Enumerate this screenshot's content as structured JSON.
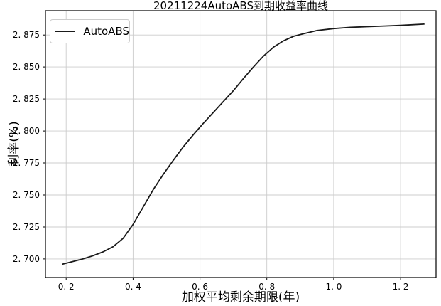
{
  "chart_data": {
    "type": "line",
    "title": "20211224AutoABS到期收益率曲线",
    "xlabel": "加权平均剩余期限(年)",
    "ylabel": "利率(%)",
    "grid": true,
    "legend_position": "upper-left",
    "legend": [
      {
        "name": "AutoABS",
        "color": "#1a1a1a"
      }
    ],
    "xlim": [
      0.138,
      1.306
    ],
    "ylim": [
      2.6855,
      2.894
    ],
    "xticks": {
      "values": [
        0.2,
        0.4,
        0.6,
        0.8,
        1.0,
        1.2
      ],
      "labels": [
        "0. 2",
        "0. 4",
        "0. 6",
        "0. 8",
        "1. 0",
        "1. 2"
      ]
    },
    "yticks": {
      "values": [
        2.7,
        2.725,
        2.75,
        2.775,
        2.8,
        2.825,
        2.85,
        2.875
      ],
      "labels": [
        "2. 700",
        "2. 725",
        "2. 750",
        "2. 775",
        "2. 800",
        "2. 825",
        "2. 850",
        "2. 875"
      ]
    },
    "series": [
      {
        "name": "AutoABS",
        "color": "#1a1a1a",
        "x": [
          0.19,
          0.22,
          0.25,
          0.28,
          0.31,
          0.34,
          0.37,
          0.4,
          0.43,
          0.46,
          0.49,
          0.52,
          0.55,
          0.58,
          0.61,
          0.64,
          0.67,
          0.7,
          0.73,
          0.76,
          0.79,
          0.82,
          0.85,
          0.88,
          0.91,
          0.95,
          1.0,
          1.05,
          1.1,
          1.15,
          1.2,
          1.27
        ],
        "y": [
          2.696,
          2.698,
          2.7,
          2.7025,
          2.7055,
          2.7095,
          2.716,
          2.727,
          2.7405,
          2.754,
          2.766,
          2.777,
          2.7875,
          2.797,
          2.806,
          2.8145,
          2.823,
          2.8315,
          2.841,
          2.85,
          2.8585,
          2.8655,
          2.8705,
          2.874,
          2.876,
          2.8785,
          2.88,
          2.881,
          2.8815,
          2.882,
          2.8825,
          2.8835
        ]
      }
    ],
    "colors": {
      "background": "#ffffff",
      "grid": "#cccccc",
      "spine": "#000000",
      "text": "#000000",
      "line": "#1a1a1a"
    }
  }
}
